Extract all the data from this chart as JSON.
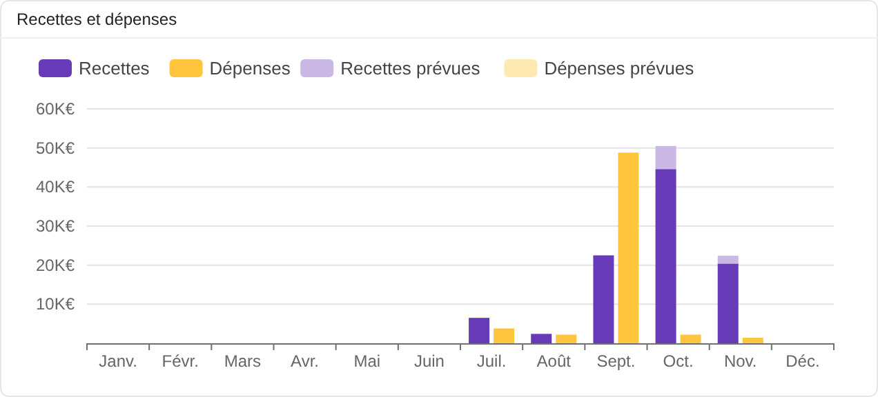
{
  "chart_data": {
    "type": "bar",
    "title": "Recettes et dépenses",
    "categories": [
      "Janv.",
      "Févr.",
      "Mars",
      "Avr.",
      "Mai",
      "Juin",
      "Juil.",
      "Août",
      "Sept.",
      "Oct.",
      "Nov.",
      "Déc."
    ],
    "series": [
      {
        "name": "Recettes",
        "color": "#673ab7",
        "values": [
          0,
          0,
          0,
          0,
          0,
          0,
          6.5,
          2.4,
          22.5,
          44.6,
          20.4,
          0
        ]
      },
      {
        "name": "Dépenses",
        "color": "#ffc53d",
        "values": [
          0,
          0,
          0,
          0,
          0,
          0,
          3.8,
          2.2,
          48.8,
          2.2,
          1.4,
          0
        ]
      },
      {
        "name": "Recettes prévues",
        "color": "#c9b8e6",
        "base": [
          null,
          null,
          null,
          null,
          null,
          null,
          null,
          null,
          null,
          44.6,
          20.4,
          null
        ],
        "values": [
          null,
          null,
          null,
          null,
          null,
          null,
          null,
          null,
          null,
          5.9,
          2,
          null
        ]
      },
      {
        "name": "Dépenses prévues",
        "color": "#ffe9b3",
        "base": [
          null,
          null,
          null,
          null,
          null,
          null,
          null,
          null,
          null,
          null,
          null,
          null
        ],
        "values": [
          null,
          null,
          null,
          null,
          null,
          null,
          null,
          null,
          null,
          null,
          null,
          null
        ]
      }
    ],
    "ylim": [
      0,
      60
    ],
    "yticks": [
      {
        "value": 10,
        "label": "10K€"
      },
      {
        "value": 20,
        "label": "20K€"
      },
      {
        "value": 30,
        "label": "30K€"
      },
      {
        "value": 40,
        "label": "40K€"
      },
      {
        "value": 50,
        "label": "50K€"
      },
      {
        "value": 60,
        "label": "60K€"
      }
    ],
    "grid": "y",
    "legend": "top left"
  }
}
